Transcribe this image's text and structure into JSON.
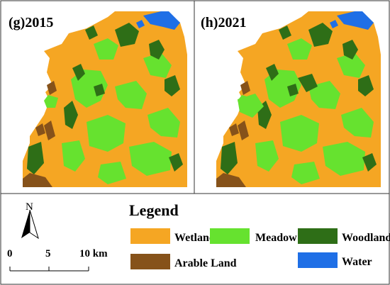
{
  "panels": [
    {
      "label": "(g)2015"
    },
    {
      "label": "(h)2021"
    }
  ],
  "legend": {
    "title": "Legend",
    "items": [
      {
        "name": "Wetland",
        "color": "#f5a623"
      },
      {
        "name": "Meadow",
        "color": "#66e22f"
      },
      {
        "name": "Woodland",
        "color": "#2e6e17"
      },
      {
        "name": "Arable Land",
        "color": "#86521a"
      },
      {
        "name": "Water",
        "color": "#1f6fe6"
      }
    ]
  },
  "scale_bar": {
    "ticks": [
      "0",
      "5",
      "10 km"
    ]
  },
  "north_arrow": {
    "label": "N",
    "icon": "north-arrow-icon"
  }
}
